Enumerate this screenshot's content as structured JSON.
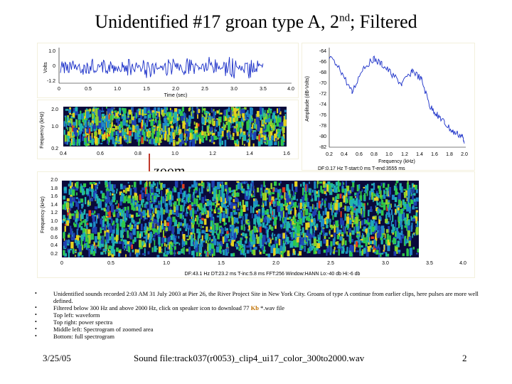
{
  "slide": {
    "title_main": "Unidentified #17 groan type A, 2",
    "title_sup": "nd",
    "title_tail": "; Filtered",
    "zoom_label": "zoom"
  },
  "waveform": {
    "ylabel": "Volts",
    "xlabel": "Time (sec)",
    "yticks": [
      "1.0",
      "0",
      "-1.2"
    ],
    "xticks": [
      "0",
      "0.5",
      "1.0",
      "1.5",
      "2.0",
      "2.5",
      "3.0",
      "3.5",
      "4.0"
    ]
  },
  "spectrogram_zoom": {
    "ylabel": "Frequency (kHz)",
    "yticks": [
      "2.0",
      "1.0",
      "0.2"
    ],
    "xticks": [
      "0.4",
      "0.6",
      "0.8",
      "1.0",
      "1.2",
      "1.4",
      "1.6"
    ]
  },
  "power_spectrum": {
    "ylabel": "Amplitude (dB-Volts)",
    "xlabel": "Frequency (kHz)",
    "yticks": [
      "-64",
      "-66",
      "-68",
      "-70",
      "-72",
      "-74",
      "-76",
      "-78",
      "-80",
      "-82"
    ],
    "xticks": [
      "0.2",
      "0.4",
      "0.6",
      "0.8",
      "1.0",
      "1.2",
      "1.4",
      "1.6",
      "1.8",
      "2.0"
    ],
    "footer": "DF:0.17 Hz   T-start:0 ms   T-end:3555 ms"
  },
  "spectrogram_full": {
    "ylabel": "Frequency (kHz)",
    "yticks": [
      "2.0",
      "1.8",
      "1.6",
      "1.4",
      "1.2",
      "1.0",
      "0.8",
      "0.6",
      "0.4",
      "0.2"
    ],
    "xticks": [
      "0",
      "0.5",
      "1.0",
      "1.5",
      "2.0",
      "2.5",
      "3.0",
      "3.5",
      "4.0"
    ],
    "footer": "DF:43.1 Hz   DT:23.2 ms   T-inc:5.8 ms   FFT:256   Window:HANN   Lo:-40 db   Hi:-6 db"
  },
  "bullets": {
    "b1": "Unidentified sounds recorded 2:03 AM 31 July 2003 at Pier 26, the River Project Site in New York City. Groans of type A continue from earlier clips, here pulses are more well defined.",
    "b2_pre": "Filtered below 300 Hz and above 2000 Hz, click on speaker icon to download 77 ",
    "b2_kb": "Kb",
    "b2_post": " *.wav file",
    "b3": "Top left: waveform",
    "b4": "Top right: power spectra",
    "b5": "Middle left: Spectrogram of zoomed area",
    "b6": "Bottom: full spectrogram",
    "bullet_char": "•"
  },
  "footer": {
    "date": "3/25/05",
    "sound_file": "Sound file:track037(r0053)_clip4_ui17_color_300to2000.wav",
    "page": "2"
  }
}
